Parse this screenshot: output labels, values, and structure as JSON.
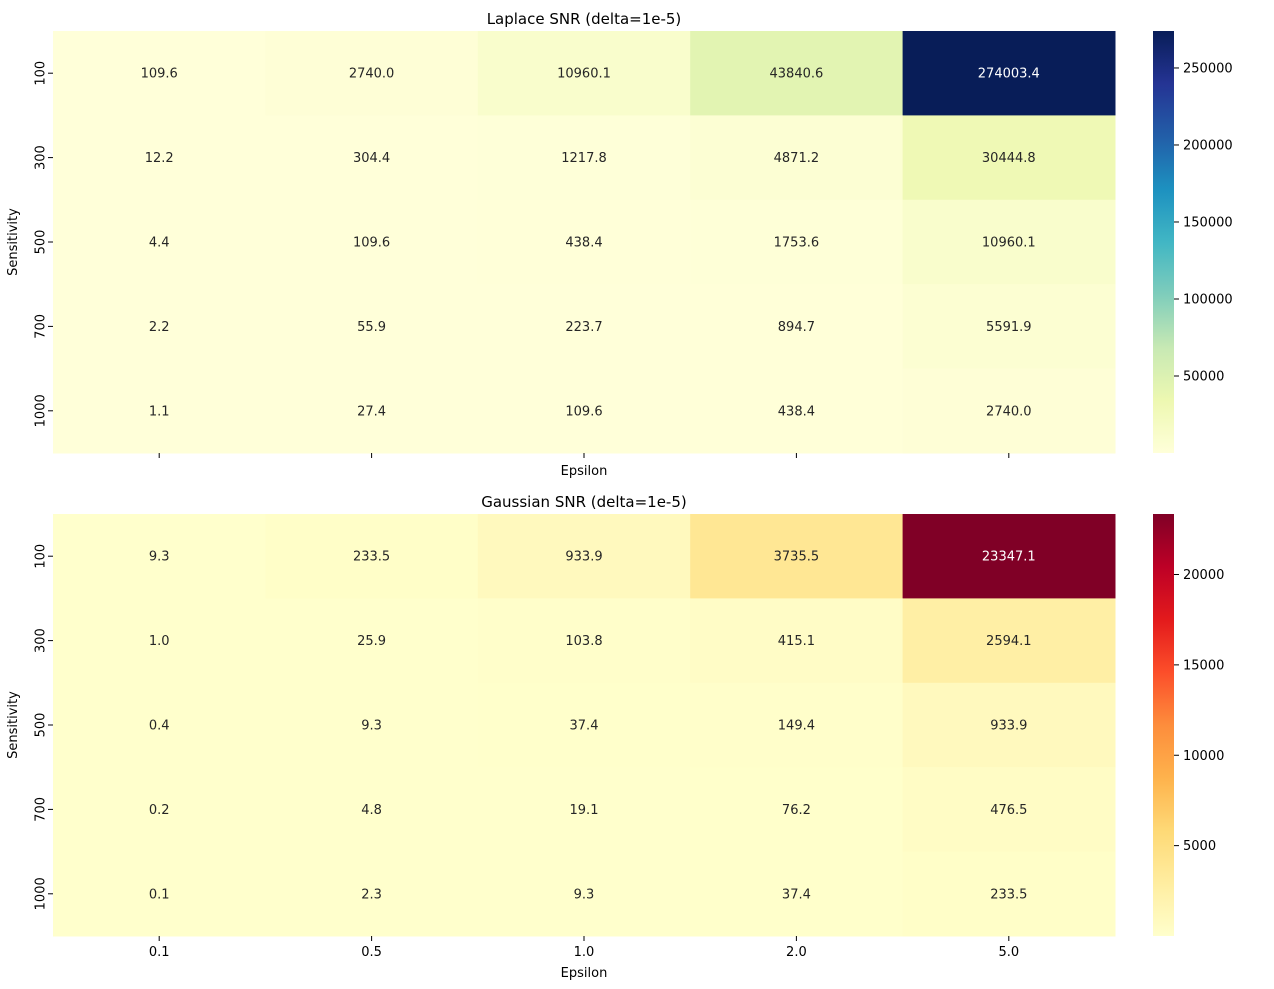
{
  "chart_data": [
    {
      "type": "heatmap",
      "title": "Laplace SNR (delta=1e-5)",
      "xlabel": "Epsilon",
      "ylabel": "Sensitivity",
      "x_categories": [
        "0.1",
        "0.5",
        "1.0",
        "2.0",
        "5.0"
      ],
      "y_categories": [
        "100",
        "300",
        "500",
        "700",
        "1000"
      ],
      "x_ticklabels_shown": false,
      "values": [
        [
          109.6,
          2740.0,
          10960.1,
          43840.6,
          274003.4
        ],
        [
          12.2,
          304.4,
          1217.8,
          4871.2,
          30444.8
        ],
        [
          4.4,
          109.6,
          438.4,
          1753.6,
          10960.1
        ],
        [
          2.2,
          55.9,
          223.7,
          894.7,
          5591.9
        ],
        [
          1.1,
          27.4,
          109.6,
          438.4,
          2740.0
        ]
      ],
      "colormap": "YlGnBu",
      "colorbar": {
        "range": [
          1.1,
          274003.4
        ],
        "ticks": [
          50000,
          100000,
          150000,
          200000,
          250000
        ],
        "tick_labels": [
          "50000",
          "100000",
          "150000",
          "200000",
          "250000"
        ]
      }
    },
    {
      "type": "heatmap",
      "title": "Gaussian SNR (delta=1e-5)",
      "xlabel": "Epsilon",
      "ylabel": "Sensitivity",
      "x_categories": [
        "0.1",
        "0.5",
        "1.0",
        "2.0",
        "5.0"
      ],
      "y_categories": [
        "100",
        "300",
        "500",
        "700",
        "1000"
      ],
      "x_ticklabels_shown": true,
      "values": [
        [
          9.3,
          233.5,
          933.9,
          3735.5,
          23347.1
        ],
        [
          1.0,
          25.9,
          103.8,
          415.1,
          2594.1
        ],
        [
          0.4,
          9.3,
          37.4,
          149.4,
          933.9
        ],
        [
          0.2,
          4.8,
          19.1,
          76.2,
          476.5
        ],
        [
          0.1,
          2.3,
          9.3,
          37.4,
          233.5
        ]
      ],
      "colormap": "YlOrRd",
      "colorbar": {
        "range": [
          0.1,
          23347.1
        ],
        "ticks": [
          5000,
          10000,
          15000,
          20000
        ],
        "tick_labels": [
          "5000",
          "10000",
          "15000",
          "20000"
        ]
      }
    }
  ]
}
